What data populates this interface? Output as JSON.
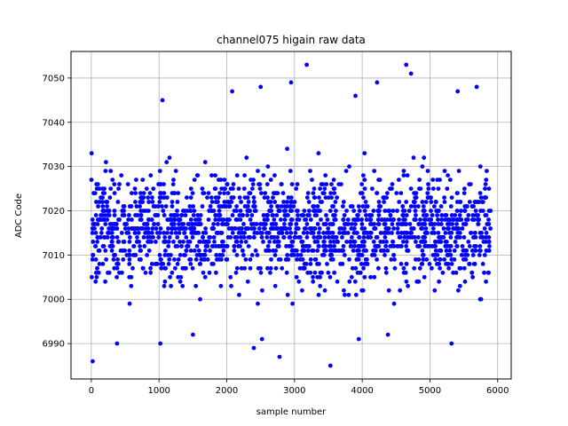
{
  "chart_data": {
    "type": "scatter",
    "title": "channel075 higain raw data",
    "xlabel": "sample number",
    "ylabel": "ADC Code",
    "xlim": [
      -300,
      6200
    ],
    "ylim": [
      6982,
      7056
    ],
    "xticks": [
      0,
      1000,
      2000,
      3000,
      4000,
      5000,
      6000
    ],
    "yticks": [
      6990,
      7000,
      7010,
      7020,
      7030,
      7040,
      7050
    ],
    "grid": true,
    "marker_color": "#0000ff",
    "series": [
      {
        "x_start": 0,
        "x_end": 5900,
        "count": 1800,
        "typical_range": [
          6996,
          7036
        ],
        "center": 7016,
        "outliers": [
          {
            "x": 20,
            "y": 6986
          },
          {
            "x": 1050,
            "y": 7045
          },
          {
            "x": 1020,
            "y": 6990
          },
          {
            "x": 2080,
            "y": 7047
          },
          {
            "x": 2400,
            "y": 6989
          },
          {
            "x": 2500,
            "y": 7048
          },
          {
            "x": 2520,
            "y": 6991
          },
          {
            "x": 2780,
            "y": 6987
          },
          {
            "x": 2950,
            "y": 7049
          },
          {
            "x": 3180,
            "y": 7053
          },
          {
            "x": 3530,
            "y": 6985
          },
          {
            "x": 3900,
            "y": 7046
          },
          {
            "x": 3950,
            "y": 6991
          },
          {
            "x": 4220,
            "y": 7049
          },
          {
            "x": 4650,
            "y": 7053
          },
          {
            "x": 4720,
            "y": 7051
          },
          {
            "x": 5320,
            "y": 6990
          },
          {
            "x": 5410,
            "y": 7047
          },
          {
            "x": 5690,
            "y": 7048
          },
          {
            "x": 380,
            "y": 6990
          },
          {
            "x": 1500,
            "y": 6992
          },
          {
            "x": 4380,
            "y": 6992
          }
        ]
      }
    ]
  }
}
